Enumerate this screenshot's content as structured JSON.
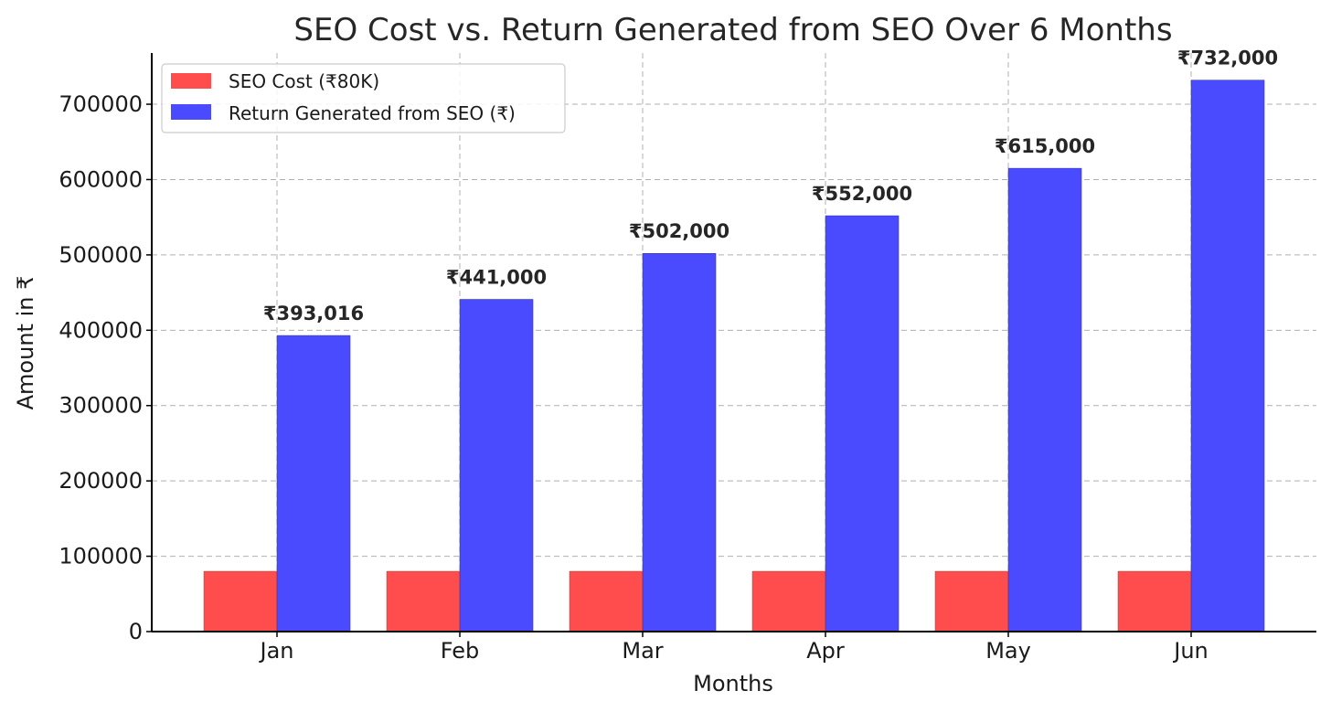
{
  "chart_data": {
    "type": "bar",
    "title": "SEO Cost vs. Return Generated from SEO Over 6 Months",
    "xlabel": "Months",
    "ylabel": "Amount in ₹",
    "categories": [
      "Jan",
      "Feb",
      "Mar",
      "Apr",
      "May",
      "Jun"
    ],
    "series": [
      {
        "name": "SEO Cost (₹80K)",
        "color": "#ff4d4d",
        "values": [
          80000,
          80000,
          80000,
          80000,
          80000,
          80000
        ]
      },
      {
        "name": "Return Generated from SEO (₹)",
        "color": "#4a4aff",
        "values": [
          393016,
          441000,
          502000,
          552000,
          615000,
          732000
        ],
        "data_labels": [
          "₹393,016",
          "₹441,000",
          "₹502,000",
          "₹552,000",
          "₹615,000",
          "₹732,000"
        ]
      }
    ],
    "yticks": [
      0,
      100000,
      200000,
      300000,
      400000,
      500000,
      600000,
      700000
    ],
    "ytick_labels": [
      "0",
      "100000",
      "200000",
      "300000",
      "400000",
      "500000",
      "600000",
      "700000"
    ],
    "ylim": [
      0,
      768000
    ],
    "grid": true,
    "legend_position": "top-left"
  }
}
